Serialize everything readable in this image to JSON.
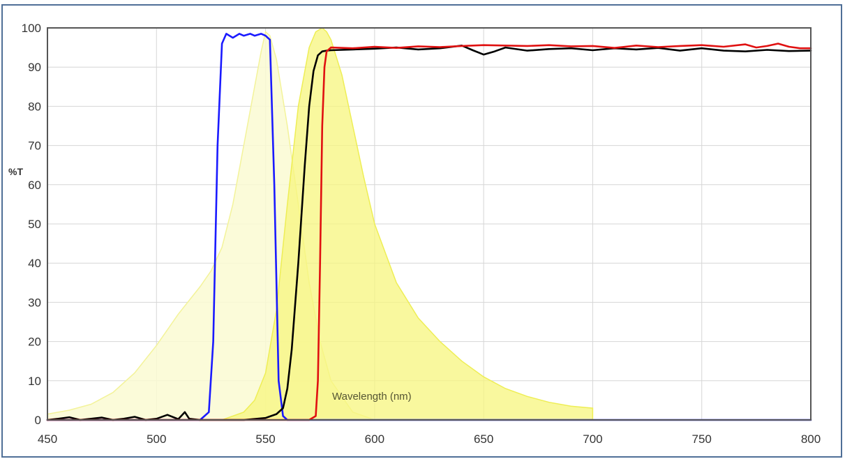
{
  "chart_data": {
    "type": "line",
    "title": "",
    "xlabel": "Wavelength (nm)",
    "ylabel": "%T",
    "xlim": [
      450,
      800
    ],
    "ylim": [
      0,
      100
    ],
    "xticks": [
      "450",
      "500",
      "550",
      "600",
      "650",
      "700",
      "750",
      "800"
    ],
    "yticks": [
      "0",
      "10",
      "20",
      "30",
      "40",
      "50",
      "60",
      "70",
      "80",
      "90",
      "100"
    ],
    "grid": true,
    "series": [
      {
        "kind": "area",
        "color": "#fafad2",
        "edge": "#f3f39a",
        "opacity": 0.85,
        "x": [
          450,
          460,
          470,
          480,
          490,
          500,
          510,
          520,
          525,
          530,
          535,
          540,
          545,
          548,
          550,
          552,
          555,
          560,
          565,
          570,
          575,
          580,
          590,
          600
        ],
        "y": [
          1.5,
          2.5,
          4,
          7,
          12,
          19,
          27,
          34,
          38,
          44,
          55,
          70,
          85,
          94,
          99,
          98,
          92,
          75,
          55,
          35,
          20,
          10,
          2,
          0
        ]
      },
      {
        "kind": "area",
        "color": "#f7f57e",
        "edge": "#eeee55",
        "opacity": 0.75,
        "x": [
          530,
          540,
          545,
          550,
          555,
          560,
          565,
          570,
          573,
          576,
          578,
          580,
          585,
          590,
          595,
          600,
          610,
          620,
          630,
          640,
          650,
          660,
          670,
          680,
          690,
          700
        ],
        "y": [
          0,
          2,
          5,
          12,
          28,
          55,
          80,
          95,
          99,
          100,
          99,
          97,
          88,
          75,
          62,
          50,
          35,
          26,
          20,
          15,
          11,
          8,
          6,
          4.5,
          3.5,
          3
        ]
      },
      {
        "kind": "line",
        "color": "#1a1aff",
        "x": [
          450,
          520,
          524,
          526,
          528,
          530,
          532,
          535,
          538,
          540,
          543,
          545,
          548,
          550,
          552,
          554,
          556,
          558,
          560,
          800
        ],
        "y": [
          0,
          0,
          2,
          20,
          70,
          96,
          98.5,
          97.5,
          98.5,
          98,
          98.5,
          98,
          98.5,
          98,
          97,
          60,
          10,
          1,
          0,
          0
        ]
      },
      {
        "kind": "line",
        "color": "#000000",
        "x": [
          450,
          455,
          460,
          465,
          470,
          475,
          480,
          485,
          490,
          495,
          500,
          505,
          510,
          513,
          515,
          520,
          540,
          550,
          555,
          558,
          560,
          562,
          565,
          568,
          570,
          572,
          574,
          576,
          578,
          580,
          590,
          600,
          610,
          620,
          630,
          640,
          645,
          650,
          655,
          660,
          670,
          680,
          690,
          700,
          710,
          720,
          730,
          740,
          750,
          760,
          770,
          780,
          790,
          800
        ],
        "y": [
          0,
          0.3,
          0.7,
          0,
          0.3,
          0.6,
          0,
          0.3,
          0.8,
          0,
          0.3,
          1.3,
          0.2,
          2,
          0.3,
          0,
          0,
          0.5,
          1.5,
          3,
          8,
          18,
          40,
          65,
          80,
          89,
          93,
          94,
          94.2,
          94.3,
          94.5,
          94.7,
          95,
          94.5,
          94.8,
          95.5,
          94.3,
          93.2,
          94,
          95,
          94.2,
          94.6,
          94.8,
          94.3,
          94.8,
          94.5,
          94.9,
          94.2,
          94.8,
          94.2,
          94,
          94.4,
          94.1,
          94.2
        ]
      },
      {
        "kind": "line",
        "color": "#e01010",
        "x": [
          450,
          570,
          573,
          574,
          575,
          576,
          577,
          578,
          580,
          590,
          600,
          610,
          620,
          630,
          640,
          650,
          660,
          670,
          680,
          690,
          700,
          710,
          720,
          730,
          740,
          750,
          760,
          770,
          775,
          780,
          785,
          790,
          795,
          800
        ],
        "y": [
          0,
          0,
          1,
          10,
          40,
          75,
          90,
          94,
          95,
          94.8,
          95.2,
          94.9,
          95.3,
          95.1,
          95.4,
          95.6,
          95.5,
          95.4,
          95.6,
          95.3,
          95.4,
          94.9,
          95.5,
          95.1,
          95.4,
          95.6,
          95.2,
          95.8,
          95,
          95.4,
          96,
          95.2,
          94.8,
          94.8
        ]
      }
    ]
  }
}
